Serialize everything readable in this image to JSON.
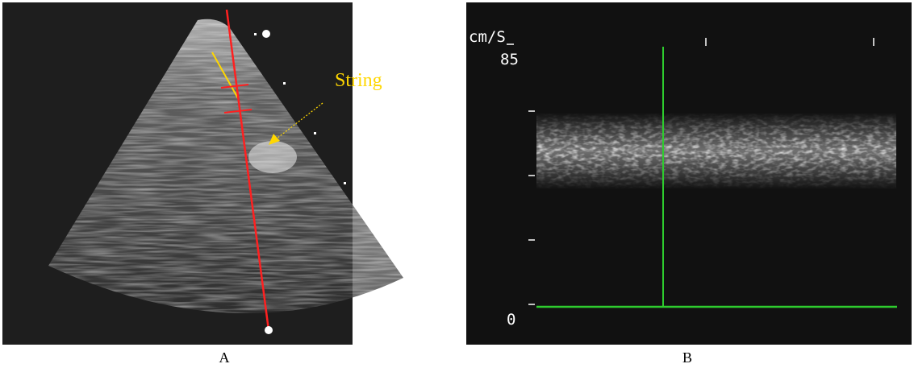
{
  "panel_a": {
    "annotation": "String",
    "caption": "A"
  },
  "panel_b": {
    "unit_label": "cm/S",
    "top_label": "85",
    "bottom_label": "0",
    "caption": "B"
  }
}
